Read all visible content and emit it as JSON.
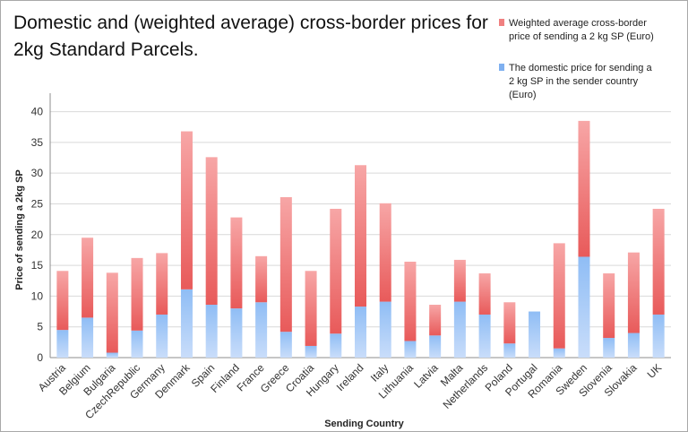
{
  "chart_data": {
    "type": "bar",
    "stacked": true,
    "title": "Domestic and (weighted average) cross-border prices for 2kg Standard Parcels.",
    "xlabel": "Sending Country",
    "ylabel": "Price of sending a 2kg SP",
    "ylim": [
      0,
      43
    ],
    "yticks": [
      "0",
      "5",
      "10",
      "15",
      "20",
      "25",
      "30",
      "35",
      "40"
    ],
    "categories": [
      "Austria",
      "Belgium",
      "Bulgaria",
      "CzechRepublic",
      "Germany",
      "Denmark",
      "Spain",
      "Finland",
      "France",
      "Greece",
      "Croatia",
      "Hungary",
      "Ireland",
      "Italy",
      "Lithuania",
      "Latvia",
      "Malta",
      "Netherlands",
      "Poland",
      "Portugal",
      "Romania",
      "Sweden",
      "Slovenia",
      "Slovakia",
      "UK"
    ],
    "series": [
      {
        "name": "The domestic price for sending a 2 kg SP in the sender country (Euro)",
        "color": "#7fb0f0",
        "values": [
          4.5,
          6.5,
          0.8,
          4.4,
          7.0,
          11.1,
          8.6,
          8.0,
          9.0,
          4.2,
          1.9,
          3.9,
          8.3,
          9.1,
          2.7,
          3.6,
          9.1,
          7.0,
          2.3,
          7.5,
          1.5,
          16.4,
          3.2,
          4.0,
          7.0
        ]
      },
      {
        "name": "Weighted average cross-border price of sending a 2 kg SP (Euro)",
        "color": "#f08080",
        "values": [
          9.6,
          13.0,
          13.0,
          11.8,
          10.0,
          25.7,
          24.0,
          14.8,
          7.5,
          21.9,
          12.2,
          20.3,
          23.0,
          16.0,
          12.9,
          5.0,
          6.8,
          6.7,
          6.7,
          0.0,
          17.1,
          22.1,
          10.5,
          13.1,
          17.2
        ]
      }
    ],
    "legend": [
      {
        "label": "Weighted average cross-border price of sending a 2 kg SP (Euro)",
        "color": "#f08080"
      },
      {
        "label": "The domestic price for sending a 2 kg SP in the sender country (Euro)",
        "color": "#7fb0f0"
      }
    ]
  }
}
